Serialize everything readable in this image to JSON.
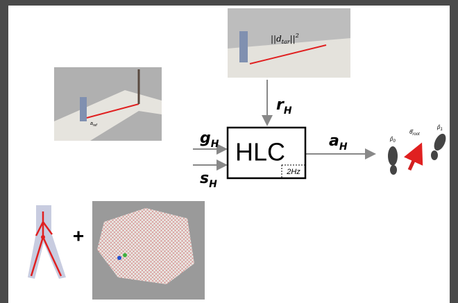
{
  "top_image_label": {
    "text": "||d",
    "subscript": "tar",
    "suffix": "||",
    "superscript": "2"
  },
  "left_image_label": {
    "text": "a",
    "subscript": "ref"
  },
  "inputs": {
    "reward": {
      "symbol": "r",
      "subscript": "H"
    },
    "goal": {
      "symbol": "g",
      "subscript": "H"
    },
    "state": {
      "symbol": "s",
      "subscript": "H"
    }
  },
  "block": {
    "label": "HLC",
    "rate": "2Hz"
  },
  "output": {
    "symbol": "a",
    "subscript": "H"
  },
  "footsteps": {
    "left": {
      "text": "p̂",
      "subscript": "0"
    },
    "direction": {
      "text": "θ̂",
      "subscript": "root"
    },
    "right": {
      "text": "p̂",
      "subscript": "1"
    }
  },
  "plus": "+"
}
